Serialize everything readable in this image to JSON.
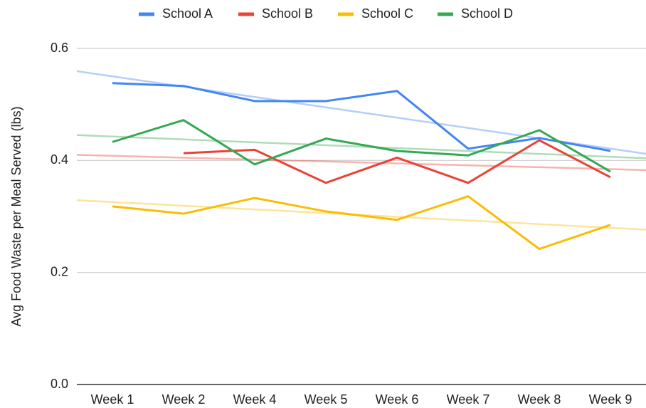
{
  "chart_data": {
    "type": "line",
    "y_label": "Avg Food Waste per Meal Served (lbs)",
    "categories": [
      "Week 1",
      "Week 2",
      "Week 4",
      "Week 5",
      "Week 6",
      "Week 7",
      "Week 8",
      "Week 9"
    ],
    "series": [
      {
        "name": "School A",
        "color": "#4285f4",
        "values": [
          0.538,
          0.533,
          0.506,
          0.506,
          0.524,
          0.421,
          0.44,
          0.417
        ]
      },
      {
        "name": "School B",
        "color": "#ea4335",
        "values": [
          null,
          0.413,
          0.419,
          0.36,
          0.405,
          0.36,
          0.436,
          0.37
        ]
      },
      {
        "name": "School C",
        "color": "#fbbc04",
        "values": [
          0.318,
          0.305,
          0.333,
          0.309,
          0.294,
          0.336,
          0.242,
          0.285
        ]
      },
      {
        "name": "School D",
        "color": "#34a853",
        "values": [
          0.433,
          0.472,
          0.393,
          0.439,
          0.417,
          0.409,
          0.454,
          0.38
        ]
      }
    ],
    "ylim": [
      0,
      0.6
    ],
    "yticks": [
      {
        "value": 0,
        "label": "0.0"
      },
      0.2,
      0.4,
      0.6
    ],
    "grid": true,
    "trendline": true,
    "legend": "top"
  }
}
